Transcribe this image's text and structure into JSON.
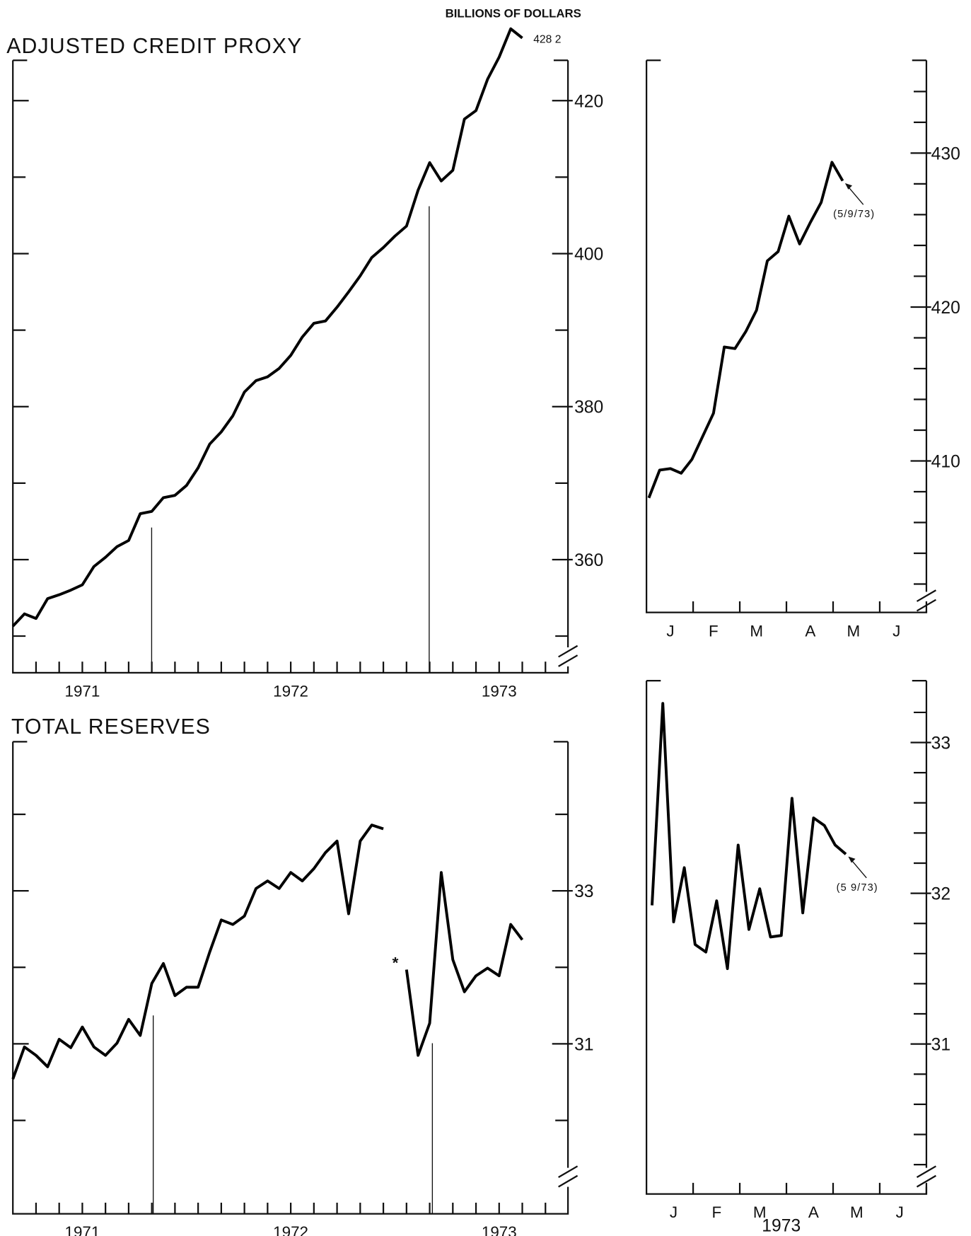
{
  "units": "BILLIONS OF DOLLARS",
  "chart_data": [
    {
      "type": "line",
      "title": "ADJUSTED CREDIT PROXY",
      "categories": [
        null,
        null,
        null,
        null,
        null,
        null,
        "1971",
        null,
        null,
        null,
        null,
        null,
        null,
        null,
        null,
        null,
        null,
        null,
        null,
        null,
        null,
        null,
        null,
        null,
        "1972",
        null,
        null,
        null,
        null,
        null,
        null,
        null,
        null,
        null,
        null,
        null,
        null,
        null,
        null,
        null,
        null,
        null,
        "1973",
        null,
        null,
        null,
        null,
        null
      ],
      "values": [
        351.3,
        352.9,
        352.3,
        354.9,
        355.4,
        356,
        356.7,
        359.1,
        360.3,
        361.7,
        362.5,
        366,
        366.3,
        368.1,
        368.4,
        369.7,
        372,
        375.1,
        376.7,
        378.8,
        381.9,
        383.4,
        383.9,
        385,
        386.7,
        389.1,
        390.9,
        391.2,
        393,
        395,
        397.1,
        399.5,
        400.8,
        402.3,
        403.6,
        408.3,
        411.9,
        409.5,
        410.9,
        417.6,
        418.7,
        422.8,
        425.7,
        429.4,
        428.2,
        null,
        null,
        null
      ],
      "color": "#000000",
      "ylim": [
        345,
        430
      ],
      "yticks": [
        360,
        380,
        400,
        420
      ],
      "yminor_ticks": [
        350,
        370,
        390,
        410
      ],
      "annotation": "428 2"
    },
    {
      "type": "line",
      "title": "TOTAL RESERVES",
      "categories": [
        null,
        null,
        null,
        null,
        null,
        null,
        "1971",
        null,
        null,
        null,
        null,
        null,
        null,
        null,
        null,
        null,
        null,
        null,
        null,
        null,
        null,
        null,
        null,
        null,
        "1972",
        null,
        null,
        null,
        null,
        null,
        null,
        null,
        null,
        null,
        null,
        null,
        null,
        null,
        null,
        null,
        null,
        null,
        "1973",
        null,
        null,
        null,
        null,
        null
      ],
      "values": [
        30.54,
        30.96,
        30.85,
        30.7,
        31.06,
        30.95,
        31.22,
        30.96,
        30.85,
        31.01,
        31.32,
        31.11,
        31.79,
        32.05,
        31.63,
        31.74,
        31.74,
        32.2,
        32.62,
        32.56,
        32.67,
        33.03,
        33.13,
        33.03,
        33.24,
        33.13,
        33.29,
        33.5,
        33.65,
        32.7,
        33.65,
        33.86,
        33.81,
        null,
        31.97,
        30.85,
        31.27,
        33.24,
        32.1,
        31.68,
        31.89,
        31.99,
        31.89,
        32.56,
        32.36,
        null,
        null,
        null
      ],
      "color": "#000000",
      "ylim": [
        28.8,
        35
      ],
      "yticks": [
        31,
        33
      ],
      "yminor_ticks": [
        30,
        32,
        34
      ],
      "annotation": "*"
    },
    {
      "type": "line",
      "categories": [
        null,
        null,
        "J",
        null,
        null,
        null,
        "F",
        null,
        null,
        null,
        "M",
        null,
        null,
        null,
        null,
        "A",
        null,
        null,
        null,
        "M",
        null,
        null,
        null,
        "J",
        null,
        null
      ],
      "values": [
        407.6,
        409.4,
        409.5,
        409.2,
        410.1,
        411.6,
        413.1,
        417.4,
        417.3,
        418.4,
        419.8,
        423,
        423.6,
        425.9,
        424.1,
        425.5,
        426.8,
        429.4,
        428.2,
        null,
        null,
        null,
        null,
        null,
        null,
        null
      ],
      "color": "#000000",
      "ylim": [
        400,
        436
      ],
      "yticks": [
        410,
        420,
        430
      ],
      "yminor_ticks": [
        402,
        404,
        406,
        408,
        412,
        414,
        416,
        418,
        422,
        424,
        426,
        428,
        432,
        434
      ],
      "annotation": "(5/9/73)"
    },
    {
      "type": "line",
      "xlabel": "1973",
      "categories": [
        null,
        null,
        "J",
        null,
        null,
        null,
        "F",
        null,
        null,
        null,
        "M",
        null,
        null,
        null,
        null,
        "A",
        null,
        null,
        null,
        "M",
        null,
        null,
        null,
        "J",
        null,
        null
      ],
      "values": [
        31.92,
        33.26,
        31.81,
        32.17,
        31.66,
        31.61,
        31.95,
        31.5,
        32.32,
        31.76,
        32.03,
        31.71,
        31.72,
        32.63,
        31.87,
        32.5,
        32.45,
        32.32,
        32.26,
        null,
        null,
        null,
        null,
        null,
        null,
        null
      ],
      "color": "#000000",
      "ylim": [
        30,
        33.4
      ],
      "yticks": [
        31,
        32,
        33
      ],
      "yminor_ticks": [
        30.2,
        30.4,
        30.6,
        30.8,
        31.2,
        31.4,
        31.6,
        31.8,
        32.2,
        32.4,
        32.6,
        32.8,
        33.2
      ],
      "annotation": "(5 9/73)"
    }
  ]
}
